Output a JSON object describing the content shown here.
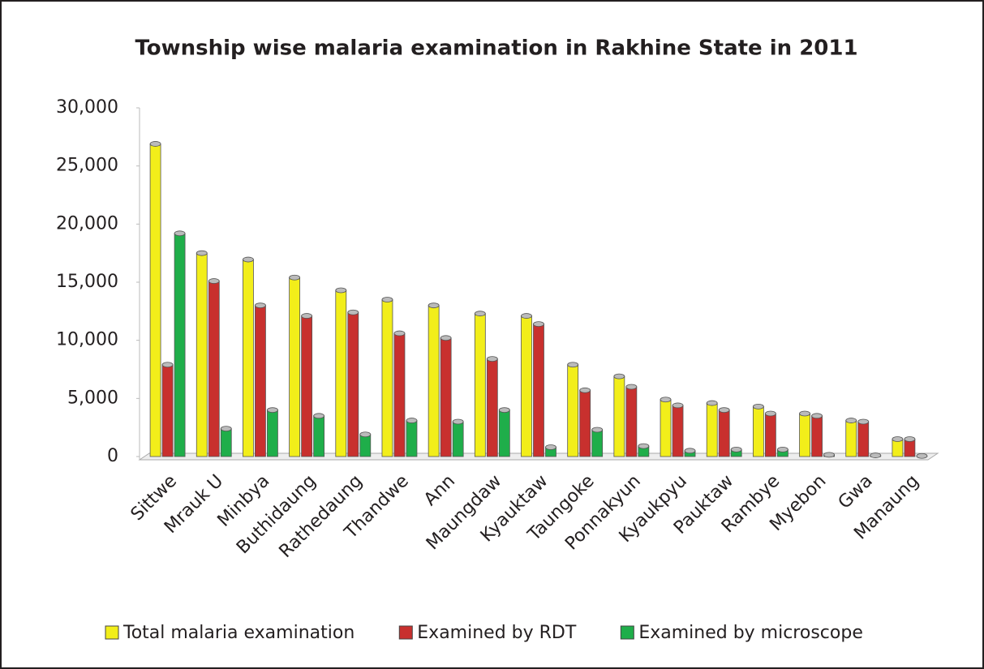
{
  "chart_data": {
    "type": "bar",
    "title": "Township wise malaria examination in Rakhine State in 2011",
    "categories": [
      "Sittwe",
      "Mrauk U",
      "Minbya",
      "Buthidaung",
      "Rathedaung",
      "Thandwe",
      "Ann",
      "Maungdaw",
      "Kyauktaw",
      "Taungoke",
      "Ponnakyun",
      "Kyaukpyu",
      "Pauktaw",
      "Rambye",
      "Myebon",
      "Gwa",
      "Manaung"
    ],
    "series": [
      {
        "name": "Total malaria examination",
        "color": "#f2ee1a",
        "values": [
          26900,
          17500,
          16950,
          15400,
          14300,
          13500,
          13000,
          12300,
          12100,
          7900,
          6900,
          4900,
          4600,
          4300,
          3700,
          3100,
          1500
        ]
      },
      {
        "name": "Examined by RDT",
        "color": "#c8302e",
        "values": [
          7900,
          15100,
          13000,
          12100,
          12400,
          10600,
          10200,
          8400,
          11400,
          5700,
          6000,
          4400,
          4000,
          3700,
          3500,
          3000,
          1500
        ]
      },
      {
        "name": "Examined by microscope",
        "color": "#1fae4a",
        "values": [
          19200,
          2400,
          4000,
          3500,
          1900,
          3100,
          3000,
          4000,
          800,
          2300,
          900,
          500,
          600,
          600,
          150,
          100,
          50
        ]
      }
    ],
    "ylim": [
      0,
      30000
    ],
    "yticks": [
      0,
      {
        "value": 5000,
        "label": "5,000"
      },
      {
        "value": 10000,
        "label": "10,000"
      },
      {
        "value": 15000,
        "label": "15,000"
      },
      {
        "value": 20000,
        "label": "20,000"
      },
      {
        "value": 25000,
        "label": "25,000"
      },
      {
        "value": 30000,
        "label": "30,000"
      }
    ],
    "legend": "bottom"
  }
}
